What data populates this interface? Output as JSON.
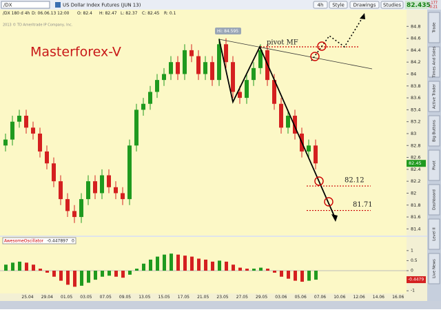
{
  "toolbar": {
    "symbol": "/DX",
    "description": "US Dollar Index Futures (JUN 13)",
    "buttons": [
      "4h",
      "Style",
      "Drawings",
      "Studies"
    ],
    "last": "82.435",
    "change": "-.177",
    "change_pct": "-0.21"
  },
  "info_bar": [
    "/DX 180 d 4h",
    "D: 06.06.13 12:00",
    "O: 82.4",
    "H: 82.47",
    "L: 82.37",
    "C: 82.45",
    "R: 0.1"
  ],
  "copyright": "2013 © TD Ameritrade IP Company, Inc.",
  "side_tabs": [
    "Trade",
    "Times And Sales",
    "Active Trader",
    "Big Buttons",
    "Pivot",
    "Dashboard",
    "Level II",
    "Live News"
  ],
  "date_labels": [
    "25.04",
    "29.04",
    "01.05",
    "03.05",
    "07.05",
    "09.05",
    "13.05",
    "15.05",
    "17.05",
    "21.05",
    "23.05",
    "27.05",
    "29.05",
    "03.06",
    "05.06",
    "07.06",
    "10.06",
    "12.06",
    "14.06",
    "16.06"
  ],
  "chart_data": [
    {
      "type": "candlestick",
      "title": "Masterforex-V",
      "open": [
        82.8,
        82.9,
        83.2,
        83.3,
        83.1,
        83.0,
        82.7,
        82.5,
        82.2,
        81.9,
        81.7,
        81.6,
        81.9,
        82.2,
        82.0,
        82.3,
        82.1,
        82.0,
        81.9,
        82.8,
        83.4,
        83.5,
        83.7,
        83.9,
        84.0,
        84.2,
        84.0,
        84.4,
        84.3,
        84.0,
        84.2,
        83.9,
        84.5,
        84.2,
        83.7,
        83.6,
        83.9,
        84.1,
        84.4,
        83.9,
        83.5,
        83.1,
        83.3,
        83.0,
        82.7,
        82.8
      ],
      "high": [
        83.0,
        83.3,
        83.4,
        83.4,
        83.2,
        83.1,
        82.8,
        82.6,
        82.3,
        82.0,
        81.8,
        82.0,
        82.3,
        82.3,
        82.4,
        82.4,
        82.2,
        82.1,
        82.9,
        83.5,
        83.6,
        83.8,
        84.0,
        84.1,
        84.3,
        84.3,
        84.5,
        84.5,
        84.4,
        84.3,
        84.3,
        84.6,
        84.6,
        84.3,
        83.8,
        84.0,
        84.2,
        84.5,
        84.5,
        84.0,
        83.6,
        83.4,
        83.4,
        83.1,
        82.9,
        82.9
      ],
      "low": [
        82.7,
        82.8,
        83.1,
        83.0,
        82.9,
        82.6,
        82.4,
        82.1,
        81.8,
        81.6,
        81.5,
        81.5,
        81.8,
        81.9,
        81.9,
        82.0,
        81.9,
        81.8,
        81.8,
        82.7,
        83.3,
        83.4,
        83.6,
        83.8,
        83.9,
        83.9,
        83.9,
        84.2,
        83.9,
        83.9,
        83.8,
        83.8,
        84.1,
        83.6,
        83.5,
        83.5,
        83.8,
        84.0,
        83.8,
        83.4,
        83.0,
        83.0,
        82.9,
        82.6,
        82.6,
        82.4
      ],
      "close": [
        82.9,
        83.2,
        83.3,
        83.1,
        83.0,
        82.7,
        82.5,
        82.2,
        81.9,
        81.7,
        81.6,
        81.9,
        82.2,
        82.0,
        82.3,
        82.1,
        82.0,
        81.9,
        82.8,
        83.4,
        83.5,
        83.7,
        83.9,
        84.0,
        84.2,
        84.0,
        84.4,
        84.3,
        84.0,
        84.2,
        83.9,
        84.5,
        84.2,
        83.7,
        83.6,
        83.9,
        84.1,
        84.4,
        83.9,
        83.5,
        83.1,
        83.3,
        83.0,
        82.7,
        82.8,
        82.5
      ],
      "up_color": "#1f9a1f",
      "down_color": "#d42020",
      "ylim": [
        81.3,
        85.0
      ],
      "yticks": [
        84.8,
        84.6,
        84.4,
        84.2,
        84,
        83.8,
        83.6,
        83.4,
        83.2,
        83,
        82.8,
        82.6,
        82.4,
        82.2,
        82,
        81.8,
        81.6,
        81.4
      ],
      "price_badge": "82.45",
      "hi_label": "Hi: 84.595",
      "pivot_label": "pivot MF",
      "targets": [
        {
          "label": "82.12",
          "value": 82.12
        },
        {
          "label": "81.71",
          "value": 81.71
        }
      ]
    },
    {
      "type": "bar",
      "title": "AwesomeOscillator",
      "current": "-0.447897",
      "reference": "0",
      "values": [
        0.3,
        0.4,
        0.45,
        0.4,
        0.3,
        0.1,
        -0.1,
        -0.3,
        -0.5,
        -0.7,
        -0.8,
        -0.75,
        -0.6,
        -0.45,
        -0.3,
        -0.25,
        -0.3,
        -0.35,
        -0.2,
        0.1,
        0.35,
        0.55,
        0.7,
        0.8,
        0.85,
        0.8,
        0.75,
        0.7,
        0.6,
        0.55,
        0.45,
        0.5,
        0.45,
        0.3,
        0.15,
        0.1,
        0.1,
        0.15,
        0.1,
        -0.1,
        -0.3,
        -0.4,
        -0.5,
        -0.55,
        -0.5,
        -0.447897
      ],
      "up_color": "#1f9a1f",
      "down_color": "#d42020",
      "ylim": [
        -1.2,
        1.2
      ],
      "yticks": [
        1,
        0.5,
        0,
        -0.5,
        -1
      ],
      "badge": "-0.4479"
    }
  ]
}
